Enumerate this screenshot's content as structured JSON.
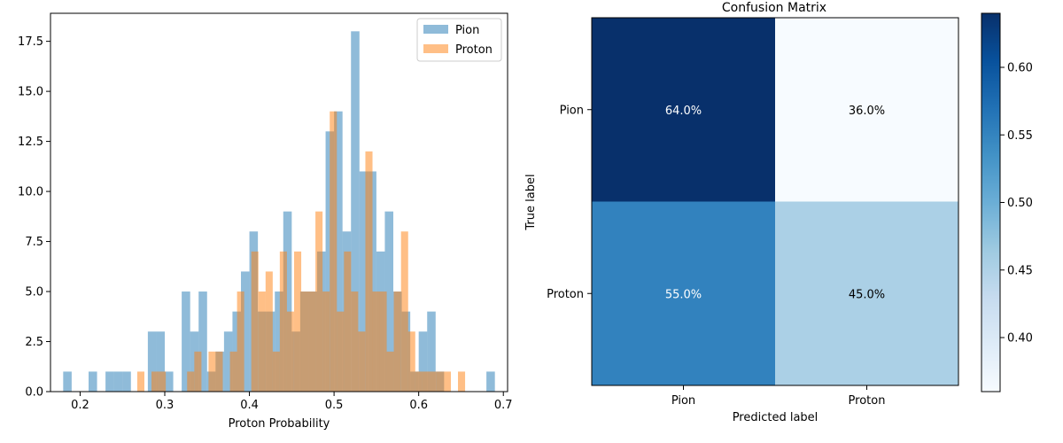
{
  "chart_data": [
    {
      "type": "bar",
      "title": "",
      "xlabel": "Proton Probability",
      "ylabel": "",
      "xlim": [
        0.165,
        0.705
      ],
      "ylim": [
        0,
        18.9
      ],
      "xticks": [
        "0.2",
        "0.3",
        "0.4",
        "0.5",
        "0.6",
        "0.7"
      ],
      "yticks": [
        "0.0",
        "2.5",
        "5.0",
        "7.5",
        "10.0",
        "12.5",
        "15.0",
        "17.5"
      ],
      "legend": {
        "placement": "top-right"
      },
      "series": [
        {
          "name": "Pion",
          "color": "#1f77b4",
          "alpha": 0.5,
          "bin_width": 0.01,
          "bins": [
            [
              0.18,
              1
            ],
            [
              0.21,
              1
            ],
            [
              0.23,
              1
            ],
            [
              0.24,
              1
            ],
            [
              0.25,
              1
            ],
            [
              0.28,
              3
            ],
            [
              0.29,
              3
            ],
            [
              0.3,
              1
            ],
            [
              0.32,
              5
            ],
            [
              0.33,
              3
            ],
            [
              0.34,
              5
            ],
            [
              0.35,
              1
            ],
            [
              0.36,
              2
            ],
            [
              0.37,
              3
            ],
            [
              0.38,
              4
            ],
            [
              0.39,
              6
            ],
            [
              0.4,
              8
            ],
            [
              0.41,
              4
            ],
            [
              0.42,
              4
            ],
            [
              0.43,
              5
            ],
            [
              0.44,
              9
            ],
            [
              0.45,
              3
            ],
            [
              0.46,
              5
            ],
            [
              0.47,
              5
            ],
            [
              0.48,
              7
            ],
            [
              0.49,
              13
            ],
            [
              0.5,
              14
            ],
            [
              0.51,
              8
            ],
            [
              0.52,
              18
            ],
            [
              0.53,
              11
            ],
            [
              0.54,
              11
            ],
            [
              0.55,
              7
            ],
            [
              0.56,
              9
            ],
            [
              0.57,
              5
            ],
            [
              0.58,
              4
            ],
            [
              0.59,
              1
            ],
            [
              0.6,
              3
            ],
            [
              0.61,
              4
            ],
            [
              0.62,
              1
            ],
            [
              0.68,
              1
            ]
          ]
        },
        {
          "name": "Proton",
          "color": "#ff7f0e",
          "alpha": 0.5,
          "bin_width": 0.00842,
          "bins": [
            [
              0.2675,
              1
            ],
            [
              0.2843,
              1
            ],
            [
              0.2928,
              1
            ],
            [
              0.3264,
              1
            ],
            [
              0.3349,
              2
            ],
            [
              0.3517,
              2
            ],
            [
              0.3601,
              2
            ],
            [
              0.377,
              2
            ],
            [
              0.3854,
              5
            ],
            [
              0.4022,
              7
            ],
            [
              0.4107,
              5
            ],
            [
              0.4191,
              6
            ],
            [
              0.4275,
              2
            ],
            [
              0.4359,
              7
            ],
            [
              0.4443,
              4
            ],
            [
              0.4528,
              7
            ],
            [
              0.4612,
              5
            ],
            [
              0.4696,
              5
            ],
            [
              0.478,
              9
            ],
            [
              0.4864,
              5
            ],
            [
              0.4949,
              14
            ],
            [
              0.5033,
              4
            ],
            [
              0.5117,
              7
            ],
            [
              0.5201,
              5
            ],
            [
              0.5285,
              3
            ],
            [
              0.537,
              12
            ],
            [
              0.5454,
              5
            ],
            [
              0.5538,
              5
            ],
            [
              0.5622,
              2
            ],
            [
              0.5706,
              5
            ],
            [
              0.5791,
              8
            ],
            [
              0.5875,
              3
            ],
            [
              0.5959,
              1
            ],
            [
              0.6043,
              1
            ],
            [
              0.6127,
              1
            ],
            [
              0.6212,
              1
            ],
            [
              0.6296,
              1
            ],
            [
              0.6464,
              1
            ]
          ]
        }
      ]
    },
    {
      "type": "heatmap",
      "title": "Confusion Matrix",
      "xlabel": "Predicted label",
      "ylabel": "True label",
      "x_categories": [
        "Pion",
        "Proton"
      ],
      "y_categories": [
        "Pion",
        "Proton"
      ],
      "values": [
        [
          0.64,
          0.36
        ],
        [
          0.55,
          0.45
        ]
      ],
      "cell_labels": [
        [
          "64.0%",
          "36.0%"
        ],
        [
          "55.0%",
          "45.0%"
        ]
      ],
      "cell_colors": [
        [
          "#08306b",
          "#f7fbff"
        ],
        [
          "#3282be",
          "#abd0e6"
        ]
      ],
      "cell_text_colors": [
        [
          "#ffffff",
          "#000000"
        ],
        [
          "#ffffff",
          "#000000"
        ]
      ],
      "colorbar": {
        "min": 0.36,
        "max": 0.64,
        "ticks": [
          0.4,
          0.45,
          0.5,
          0.55,
          0.6
        ],
        "tick_labels": [
          "0.40",
          "0.45",
          "0.50",
          "0.55",
          "0.60"
        ],
        "colormap": [
          "#f7fbff",
          "#deebf7",
          "#c6dbef",
          "#9ecae1",
          "#6baed6",
          "#4292c6",
          "#2171b5",
          "#08519c",
          "#08306b"
        ]
      }
    }
  ]
}
